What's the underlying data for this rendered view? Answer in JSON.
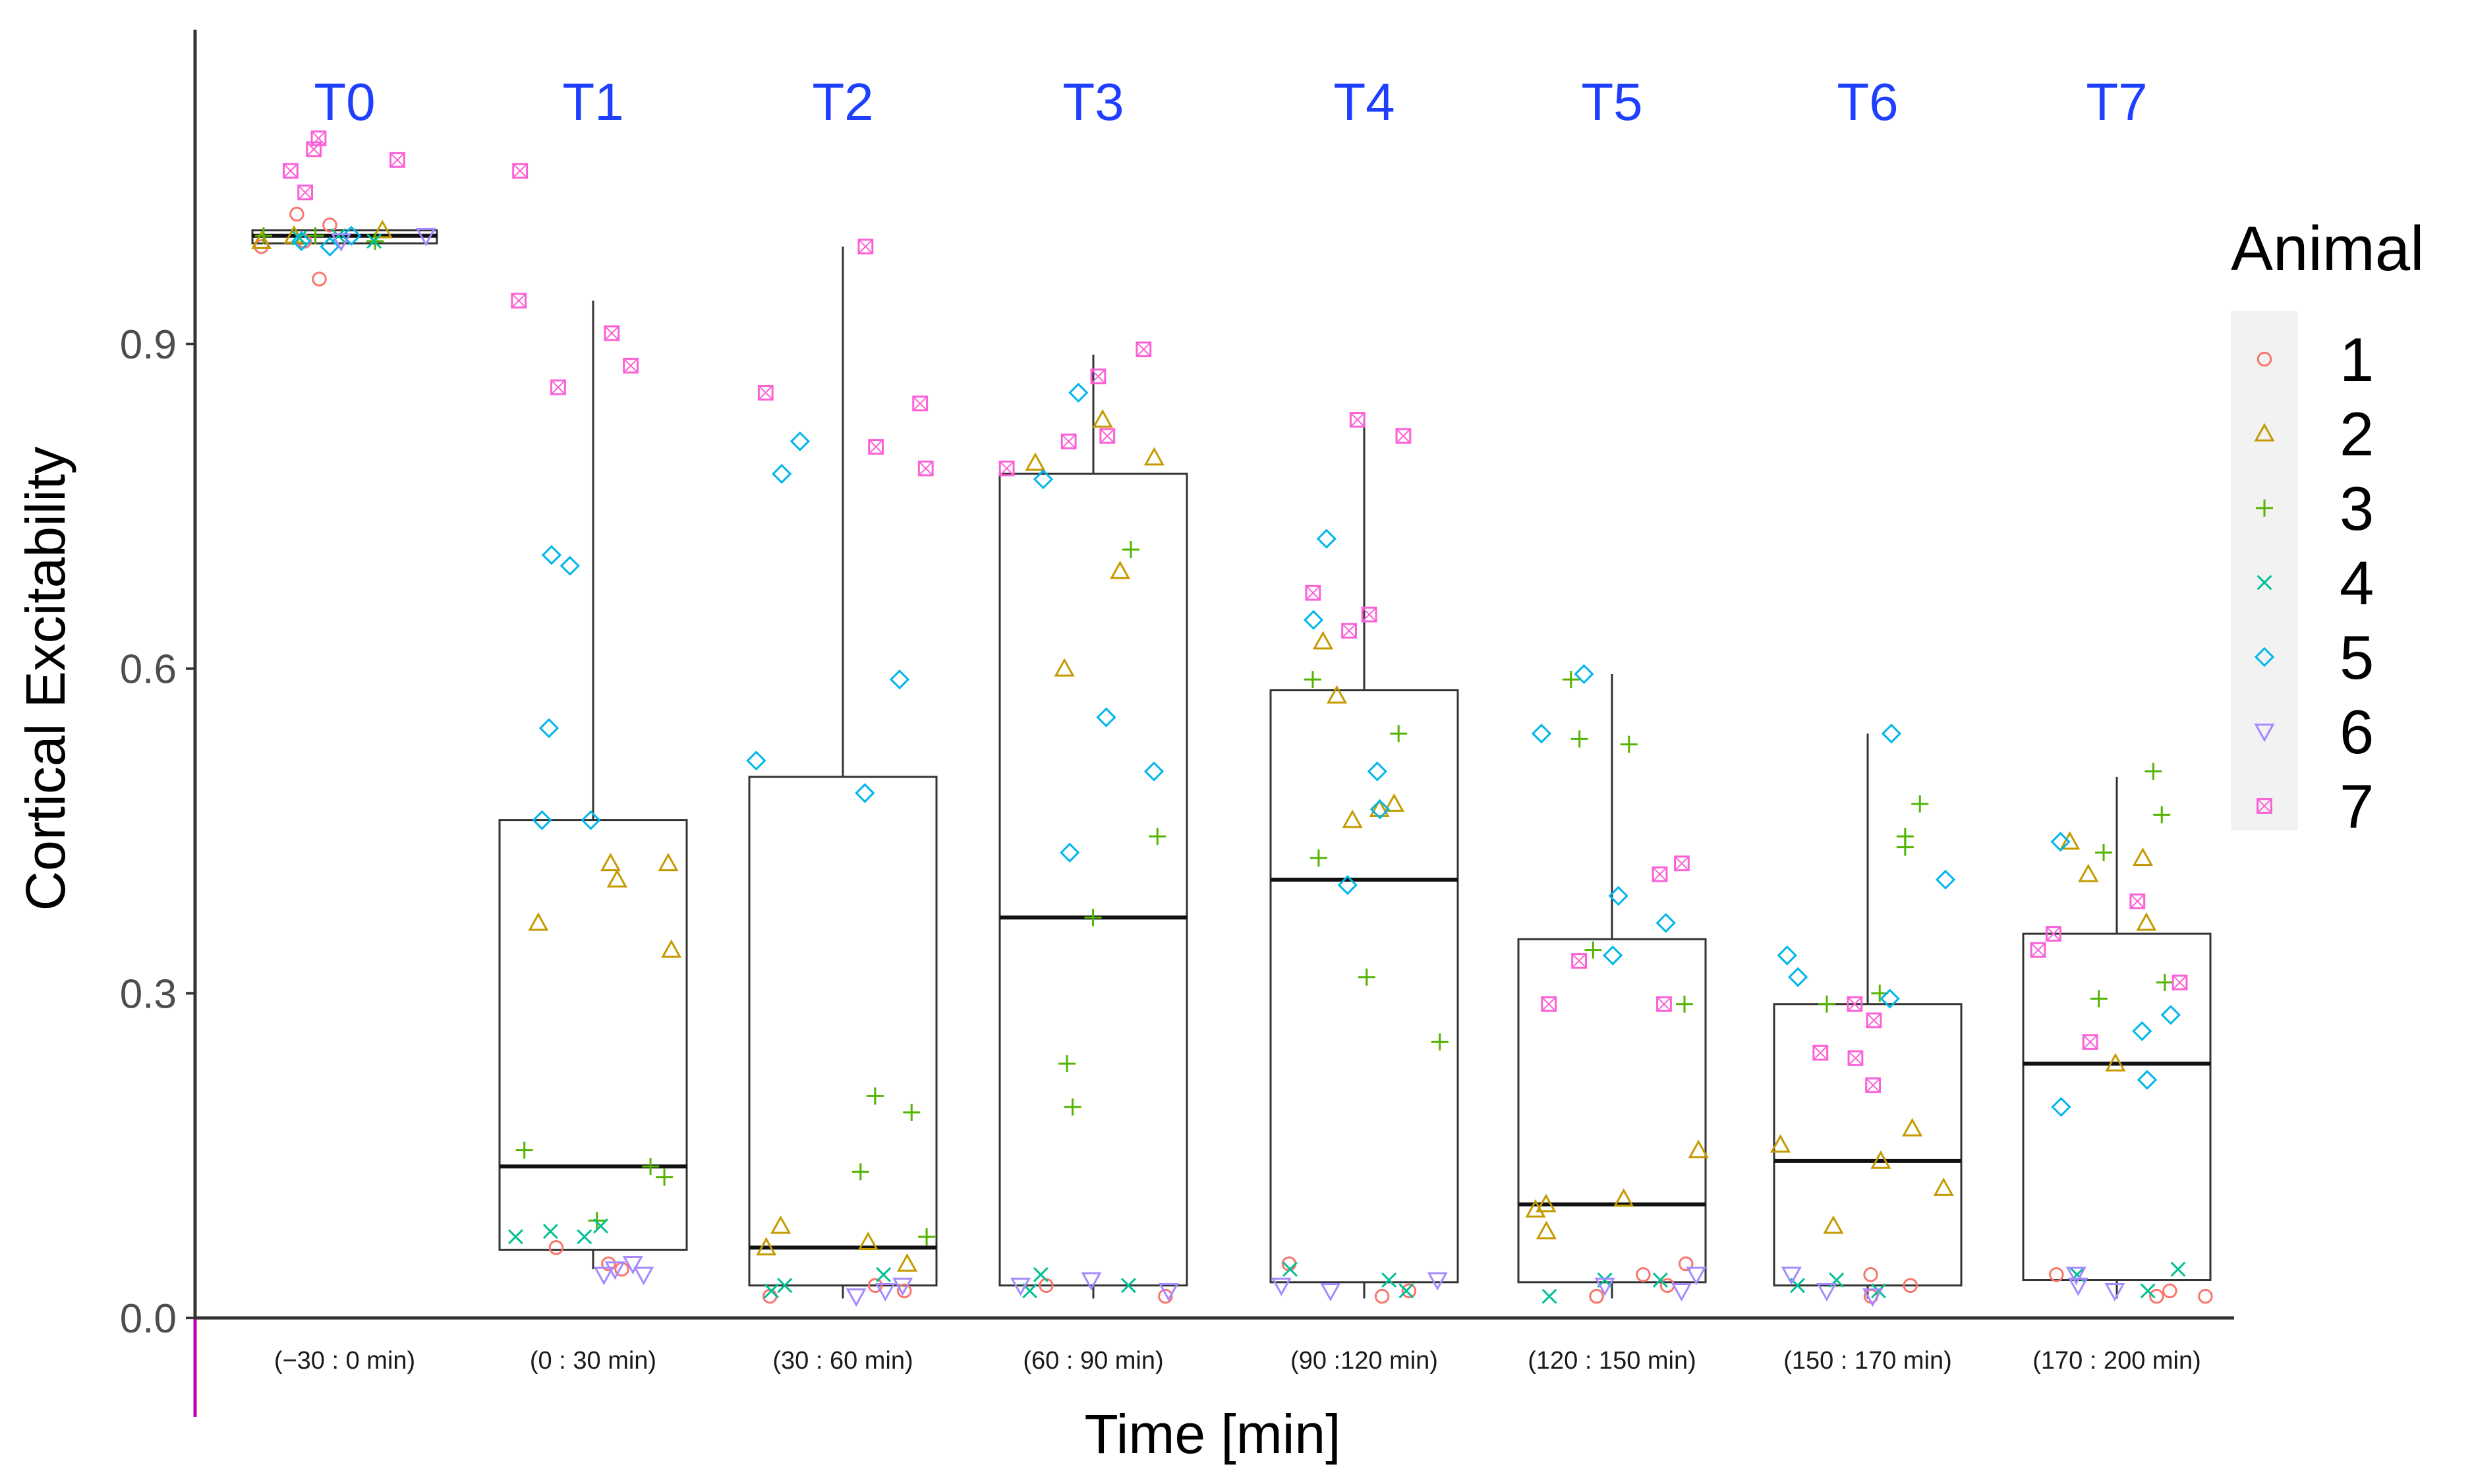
{
  "chart_data": {
    "type": "box-jitter",
    "title": "",
    "xlabel": "Time [min]",
    "ylabel": "Cortical Excitability",
    "ylim": [
      -0.04,
      1.18
    ],
    "yticks": [
      0.0,
      0.3,
      0.6,
      0.9
    ],
    "ytick_labels": [
      "0.0",
      "0.3",
      "0.6",
      "0.9"
    ],
    "grid": false,
    "timepoints": [
      "T0",
      "T1",
      "T2",
      "T3",
      "T4",
      "T5",
      "T6",
      "T7"
    ],
    "categories": [
      "(−30 : 0 min)",
      "(0 : 30 min)",
      "(30 : 60 min)",
      "(60 : 90 min)",
      "(90 :120 min)",
      "(120 : 150 min)",
      "(150 : 170 min)",
      "(170 : 200 min)"
    ],
    "legend": {
      "title": "Animal",
      "placement": "right",
      "entries": [
        {
          "label": "1",
          "shape": "circle",
          "color": "#f8766d"
        },
        {
          "label": "2",
          "shape": "triangle",
          "color": "#c49a00"
        },
        {
          "label": "3",
          "shape": "plus",
          "color": "#53b400"
        },
        {
          "label": "4",
          "shape": "cross",
          "color": "#00c094"
        },
        {
          "label": "5",
          "shape": "diamond",
          "color": "#00b6eb"
        },
        {
          "label": "6",
          "shape": "triangle-down",
          "color": "#a58aff"
        },
        {
          "label": "7",
          "shape": "square-x",
          "color": "#fb61d7"
        }
      ]
    },
    "boxes": [
      {
        "q1": 0.993,
        "median": 1.0,
        "q3": 1.005,
        "whisker_low": 0.993,
        "whisker_high": 1.005
      },
      {
        "q1": 0.063,
        "median": 0.14,
        "q3": 0.46,
        "whisker_low": 0.045,
        "whisker_high": 0.94
      },
      {
        "q1": 0.03,
        "median": 0.065,
        "q3": 0.5,
        "whisker_low": 0.018,
        "whisker_high": 0.99
      },
      {
        "q1": 0.03,
        "median": 0.37,
        "q3": 0.78,
        "whisker_low": 0.018,
        "whisker_high": 0.89
      },
      {
        "q1": 0.033,
        "median": 0.405,
        "q3": 0.58,
        "whisker_low": 0.018,
        "whisker_high": 0.83
      },
      {
        "q1": 0.033,
        "median": 0.105,
        "q3": 0.35,
        "whisker_low": 0.018,
        "whisker_high": 0.595
      },
      {
        "q1": 0.03,
        "median": 0.145,
        "q3": 0.29,
        "whisker_low": 0.018,
        "whisker_high": 0.54
      },
      {
        "q1": 0.035,
        "median": 0.235,
        "q3": 0.355,
        "whisker_low": 0.018,
        "whisker_high": 0.5
      }
    ],
    "points": [
      [
        {
          "animal": 1,
          "y": 1.01
        },
        {
          "animal": 1,
          "y": 0.99
        },
        {
          "animal": 1,
          "y": 0.96
        },
        {
          "animal": 1,
          "y": 1.02
        },
        {
          "animal": 1,
          "y": 0.995
        },
        {
          "animal": 2,
          "y": 1.0
        },
        {
          "animal": 2,
          "y": 1.005
        },
        {
          "animal": 2,
          "y": 0.995
        },
        {
          "animal": 3,
          "y": 1.0
        },
        {
          "animal": 3,
          "y": 1.0
        },
        {
          "animal": 3,
          "y": 0.995
        },
        {
          "animal": 4,
          "y": 0.998
        },
        {
          "animal": 4,
          "y": 1.0
        },
        {
          "animal": 4,
          "y": 0.995
        },
        {
          "animal": 5,
          "y": 0.995
        },
        {
          "animal": 5,
          "y": 1.0
        },
        {
          "animal": 5,
          "y": 0.99
        },
        {
          "animal": 6,
          "y": 0.995
        },
        {
          "animal": 6,
          "y": 1.0
        },
        {
          "animal": 7,
          "y": 1.08
        },
        {
          "animal": 7,
          "y": 1.09
        },
        {
          "animal": 7,
          "y": 1.06
        },
        {
          "animal": 7,
          "y": 1.07
        },
        {
          "animal": 7,
          "y": 1.04
        }
      ],
      [
        {
          "animal": 1,
          "y": 0.05
        },
        {
          "animal": 1,
          "y": 0.065
        },
        {
          "animal": 1,
          "y": 0.045
        },
        {
          "animal": 2,
          "y": 0.42
        },
        {
          "animal": 2,
          "y": 0.365
        },
        {
          "animal": 2,
          "y": 0.34
        },
        {
          "animal": 2,
          "y": 0.405
        },
        {
          "animal": 2,
          "y": 0.42
        },
        {
          "animal": 3,
          "y": 0.09
        },
        {
          "animal": 3,
          "y": 0.155
        },
        {
          "animal": 3,
          "y": 0.13
        },
        {
          "animal": 3,
          "y": 0.14
        },
        {
          "animal": 4,
          "y": 0.075
        },
        {
          "animal": 4,
          "y": 0.085
        },
        {
          "animal": 4,
          "y": 0.08
        },
        {
          "animal": 4,
          "y": 0.075
        },
        {
          "animal": 5,
          "y": 0.705
        },
        {
          "animal": 5,
          "y": 0.545
        },
        {
          "animal": 5,
          "y": 0.695
        },
        {
          "animal": 5,
          "y": 0.46
        },
        {
          "animal": 5,
          "y": 0.46
        },
        {
          "animal": 6,
          "y": 0.04
        },
        {
          "animal": 6,
          "y": 0.045
        },
        {
          "animal": 6,
          "y": 0.04
        },
        {
          "animal": 6,
          "y": 0.05
        },
        {
          "animal": 7,
          "y": 1.06
        },
        {
          "animal": 7,
          "y": 0.88
        },
        {
          "animal": 7,
          "y": 0.91
        },
        {
          "animal": 7,
          "y": 0.86
        },
        {
          "animal": 7,
          "y": 0.94
        }
      ],
      [
        {
          "animal": 1,
          "y": 0.025
        },
        {
          "animal": 1,
          "y": 0.03
        },
        {
          "animal": 1,
          "y": 0.02
        },
        {
          "animal": 2,
          "y": 0.05
        },
        {
          "animal": 2,
          "y": 0.07
        },
        {
          "animal": 2,
          "y": 0.085
        },
        {
          "animal": 2,
          "y": 0.065
        },
        {
          "animal": 3,
          "y": 0.135
        },
        {
          "animal": 3,
          "y": 0.205
        },
        {
          "animal": 3,
          "y": 0.19
        },
        {
          "animal": 3,
          "y": 0.075
        },
        {
          "animal": 4,
          "y": 0.025
        },
        {
          "animal": 4,
          "y": 0.04
        },
        {
          "animal": 4,
          "y": 0.03
        },
        {
          "animal": 5,
          "y": 0.59
        },
        {
          "animal": 5,
          "y": 0.515
        },
        {
          "animal": 5,
          "y": 0.485
        },
        {
          "animal": 5,
          "y": 0.81
        },
        {
          "animal": 5,
          "y": 0.78
        },
        {
          "animal": 6,
          "y": 0.025
        },
        {
          "animal": 6,
          "y": 0.03
        },
        {
          "animal": 6,
          "y": 0.02
        },
        {
          "animal": 7,
          "y": 0.845
        },
        {
          "animal": 7,
          "y": 0.785
        },
        {
          "animal": 7,
          "y": 0.805
        },
        {
          "animal": 7,
          "y": 0.99
        },
        {
          "animal": 7,
          "y": 0.855
        }
      ],
      [
        {
          "animal": 1,
          "y": 0.02
        },
        {
          "animal": 1,
          "y": 0.03
        },
        {
          "animal": 2,
          "y": 0.83
        },
        {
          "animal": 2,
          "y": 0.69
        },
        {
          "animal": 2,
          "y": 0.79
        },
        {
          "animal": 2,
          "y": 0.795
        },
        {
          "animal": 2,
          "y": 0.6
        },
        {
          "animal": 3,
          "y": 0.445
        },
        {
          "animal": 3,
          "y": 0.235
        },
        {
          "animal": 3,
          "y": 0.195
        },
        {
          "animal": 3,
          "y": 0.71
        },
        {
          "animal": 3,
          "y": 0.37
        },
        {
          "animal": 4,
          "y": 0.04
        },
        {
          "animal": 4,
          "y": 0.025
        },
        {
          "animal": 4,
          "y": 0.03
        },
        {
          "animal": 5,
          "y": 0.775
        },
        {
          "animal": 5,
          "y": 0.555
        },
        {
          "animal": 5,
          "y": 0.43
        },
        {
          "animal": 5,
          "y": 0.505
        },
        {
          "animal": 5,
          "y": 0.855
        },
        {
          "animal": 6,
          "y": 0.025
        },
        {
          "animal": 6,
          "y": 0.035
        },
        {
          "animal": 6,
          "y": 0.03
        },
        {
          "animal": 7,
          "y": 0.895
        },
        {
          "animal": 7,
          "y": 0.815
        },
        {
          "animal": 7,
          "y": 0.785
        },
        {
          "animal": 7,
          "y": 0.81
        },
        {
          "animal": 7,
          "y": 0.87
        }
      ],
      [
        {
          "animal": 1,
          "y": 0.02
        },
        {
          "animal": 1,
          "y": 0.05
        },
        {
          "animal": 1,
          "y": 0.025
        },
        {
          "animal": 2,
          "y": 0.625
        },
        {
          "animal": 2,
          "y": 0.575
        },
        {
          "animal": 2,
          "y": 0.475
        },
        {
          "animal": 2,
          "y": 0.46
        },
        {
          "animal": 2,
          "y": 0.47
        },
        {
          "animal": 3,
          "y": 0.54
        },
        {
          "animal": 3,
          "y": 0.315
        },
        {
          "animal": 3,
          "y": 0.59
        },
        {
          "animal": 3,
          "y": 0.425
        },
        {
          "animal": 3,
          "y": 0.255
        },
        {
          "animal": 4,
          "y": 0.035
        },
        {
          "animal": 4,
          "y": 0.025
        },
        {
          "animal": 4,
          "y": 0.045
        },
        {
          "animal": 5,
          "y": 0.72
        },
        {
          "animal": 5,
          "y": 0.47
        },
        {
          "animal": 5,
          "y": 0.4
        },
        {
          "animal": 5,
          "y": 0.505
        },
        {
          "animal": 5,
          "y": 0.645
        },
        {
          "animal": 6,
          "y": 0.025
        },
        {
          "animal": 6,
          "y": 0.035
        },
        {
          "animal": 6,
          "y": 0.03
        },
        {
          "animal": 7,
          "y": 0.67
        },
        {
          "animal": 7,
          "y": 0.815
        },
        {
          "animal": 7,
          "y": 0.83
        },
        {
          "animal": 7,
          "y": 0.65
        },
        {
          "animal": 7,
          "y": 0.635
        }
      ],
      [
        {
          "animal": 1,
          "y": 0.05
        },
        {
          "animal": 1,
          "y": 0.04
        },
        {
          "animal": 1,
          "y": 0.02
        },
        {
          "animal": 1,
          "y": 0.03
        },
        {
          "animal": 2,
          "y": 0.1
        },
        {
          "animal": 2,
          "y": 0.08
        },
        {
          "animal": 2,
          "y": 0.11
        },
        {
          "animal": 2,
          "y": 0.105
        },
        {
          "animal": 2,
          "y": 0.155
        },
        {
          "animal": 3,
          "y": 0.53
        },
        {
          "animal": 3,
          "y": 0.59
        },
        {
          "animal": 3,
          "y": 0.34
        },
        {
          "animal": 3,
          "y": 0.535
        },
        {
          "animal": 3,
          "y": 0.29
        },
        {
          "animal": 4,
          "y": 0.035
        },
        {
          "animal": 4,
          "y": 0.02
        },
        {
          "animal": 4,
          "y": 0.035
        },
        {
          "animal": 5,
          "y": 0.39
        },
        {
          "animal": 5,
          "y": 0.335
        },
        {
          "animal": 5,
          "y": 0.595
        },
        {
          "animal": 5,
          "y": 0.54
        },
        {
          "animal": 5,
          "y": 0.365
        },
        {
          "animal": 6,
          "y": 0.04
        },
        {
          "animal": 6,
          "y": 0.025
        },
        {
          "animal": 6,
          "y": 0.03
        },
        {
          "animal": 7,
          "y": 0.41
        },
        {
          "animal": 7,
          "y": 0.33
        },
        {
          "animal": 7,
          "y": 0.42
        },
        {
          "animal": 7,
          "y": 0.29
        },
        {
          "animal": 7,
          "y": 0.29
        }
      ],
      [
        {
          "animal": 1,
          "y": 0.04
        },
        {
          "animal": 1,
          "y": 0.02
        },
        {
          "animal": 1,
          "y": 0.03
        },
        {
          "animal": 2,
          "y": 0.175
        },
        {
          "animal": 2,
          "y": 0.085
        },
        {
          "animal": 2,
          "y": 0.145
        },
        {
          "animal": 2,
          "y": 0.16
        },
        {
          "animal": 2,
          "y": 0.12
        },
        {
          "animal": 3,
          "y": 0.435
        },
        {
          "animal": 3,
          "y": 0.445
        },
        {
          "animal": 3,
          "y": 0.475
        },
        {
          "animal": 3,
          "y": 0.3
        },
        {
          "animal": 3,
          "y": 0.29
        },
        {
          "animal": 4,
          "y": 0.035
        },
        {
          "animal": 4,
          "y": 0.025
        },
        {
          "animal": 4,
          "y": 0.03
        },
        {
          "animal": 5,
          "y": 0.405
        },
        {
          "animal": 5,
          "y": 0.315
        },
        {
          "animal": 5,
          "y": 0.54
        },
        {
          "animal": 5,
          "y": 0.335
        },
        {
          "animal": 5,
          "y": 0.295
        },
        {
          "animal": 6,
          "y": 0.025
        },
        {
          "animal": 6,
          "y": 0.04
        },
        {
          "animal": 6,
          "y": 0.02
        },
        {
          "animal": 7,
          "y": 0.24
        },
        {
          "animal": 7,
          "y": 0.29
        },
        {
          "animal": 7,
          "y": 0.245
        },
        {
          "animal": 7,
          "y": 0.275
        },
        {
          "animal": 7,
          "y": 0.215
        }
      ],
      [
        {
          "animal": 1,
          "y": 0.04
        },
        {
          "animal": 1,
          "y": 0.02
        },
        {
          "animal": 1,
          "y": 0.025
        },
        {
          "animal": 1,
          "y": 0.02
        },
        {
          "animal": 2,
          "y": 0.44
        },
        {
          "animal": 2,
          "y": 0.425
        },
        {
          "animal": 2,
          "y": 0.41
        },
        {
          "animal": 2,
          "y": 0.365
        },
        {
          "animal": 2,
          "y": 0.235
        },
        {
          "animal": 3,
          "y": 0.43
        },
        {
          "animal": 3,
          "y": 0.505
        },
        {
          "animal": 3,
          "y": 0.465
        },
        {
          "animal": 3,
          "y": 0.295
        },
        {
          "animal": 3,
          "y": 0.31
        },
        {
          "animal": 4,
          "y": 0.045
        },
        {
          "animal": 4,
          "y": 0.025
        },
        {
          "animal": 4,
          "y": 0.04
        },
        {
          "animal": 5,
          "y": 0.44
        },
        {
          "animal": 5,
          "y": 0.22
        },
        {
          "animal": 5,
          "y": 0.265
        },
        {
          "animal": 5,
          "y": 0.195
        },
        {
          "animal": 5,
          "y": 0.28
        },
        {
          "animal": 6,
          "y": 0.03
        },
        {
          "animal": 6,
          "y": 0.04
        },
        {
          "animal": 6,
          "y": 0.025
        },
        {
          "animal": 7,
          "y": 0.385
        },
        {
          "animal": 7,
          "y": 0.31
        },
        {
          "animal": 7,
          "y": 0.355
        },
        {
          "animal": 7,
          "y": 0.34
        },
        {
          "animal": 7,
          "y": 0.255
        }
      ]
    ]
  }
}
